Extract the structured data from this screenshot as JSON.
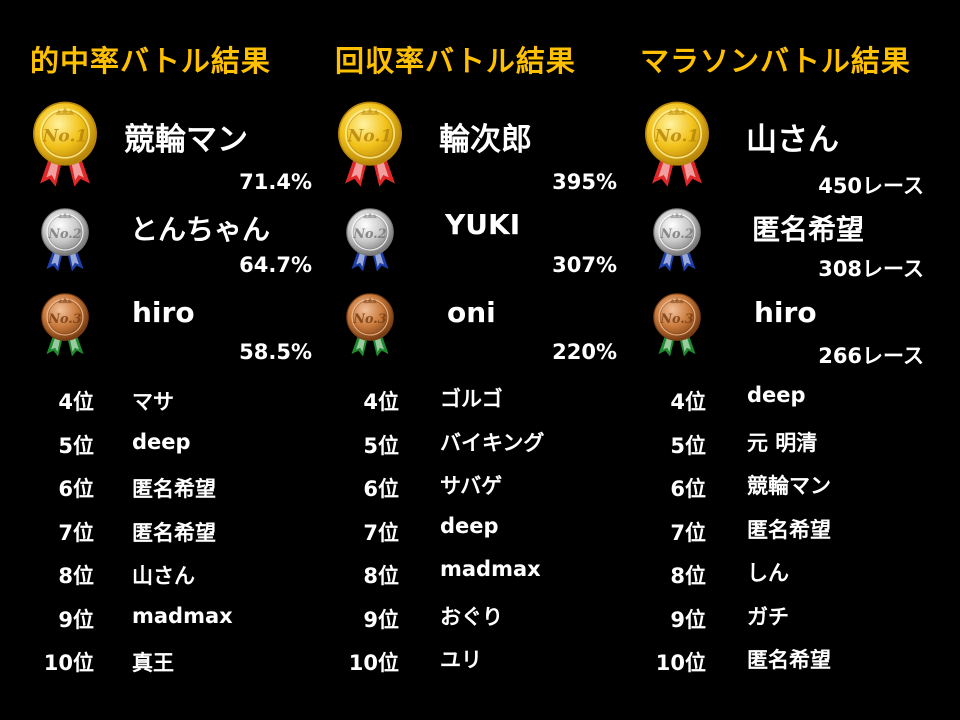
{
  "columns": [
    {
      "title": "的中率バトル結果",
      "top3": [
        {
          "name": "競輪マン",
          "score": "71.4%"
        },
        {
          "name": "とんちゃん",
          "score": "64.7%"
        },
        {
          "name": "hiro",
          "score": "58.5%"
        }
      ],
      "rest": [
        {
          "rank": "4位",
          "name": "マサ"
        },
        {
          "rank": "5位",
          "name": "deep"
        },
        {
          "rank": "6位",
          "name": "匿名希望"
        },
        {
          "rank": "7位",
          "name": "匿名希望"
        },
        {
          "rank": "8位",
          "name": "山さん"
        },
        {
          "rank": "9位",
          "name": "madmax"
        },
        {
          "rank": "10位",
          "name": "真王"
        }
      ]
    },
    {
      "title": "回収率バトル結果",
      "top3": [
        {
          "name": "輪次郎",
          "score": "395%"
        },
        {
          "name": "YUKI",
          "score": "307%"
        },
        {
          "name": "oni",
          "score": "220%"
        }
      ],
      "rest": [
        {
          "rank": "4位",
          "name": "ゴルゴ"
        },
        {
          "rank": "5位",
          "name": "バイキング"
        },
        {
          "rank": "6位",
          "name": "サバゲ"
        },
        {
          "rank": "7位",
          "name": "deep"
        },
        {
          "rank": "8位",
          "name": "madmax"
        },
        {
          "rank": "9位",
          "name": "おぐり"
        },
        {
          "rank": "10位",
          "name": "ユリ"
        }
      ]
    },
    {
      "title": "マラソンバトル結果",
      "top3": [
        {
          "name": "山さん",
          "score": "450レース"
        },
        {
          "name": "匿名希望",
          "score": "308レース"
        },
        {
          "name": "hiro",
          "score": "266レース"
        }
      ],
      "rest": [
        {
          "rank": "4位",
          "name": "deep"
        },
        {
          "rank": "5位",
          "name": "元 明清"
        },
        {
          "rank": "6位",
          "name": "競輪マン"
        },
        {
          "rank": "7位",
          "name": "匿名希望"
        },
        {
          "rank": "8位",
          "name": "しん"
        },
        {
          "rank": "9位",
          "name": "ガチ"
        },
        {
          "rank": "10位",
          "name": "匿名希望"
        }
      ]
    }
  ],
  "medals": [
    {
      "label": "No.1",
      "icon": "gold-medal-icon",
      "fill": "#f2c21b",
      "light": "#fff2a0",
      "dark": "#b8860b",
      "ribbon_a": "#e02828",
      "ribbon_b": "#ffffff"
    },
    {
      "label": "No.2",
      "icon": "silver-medal-icon",
      "fill": "#c8c8c8",
      "light": "#ffffff",
      "dark": "#7a7a7a",
      "ribbon_a": "#1e3ea8",
      "ribbon_b": "#ffffff"
    },
    {
      "label": "No.3",
      "icon": "bronze-medal-icon",
      "fill": "#c87a3c",
      "light": "#f2c09a",
      "dark": "#7a3e14",
      "ribbon_a": "#1f8a2e",
      "ribbon_b": "#ffffff"
    }
  ]
}
